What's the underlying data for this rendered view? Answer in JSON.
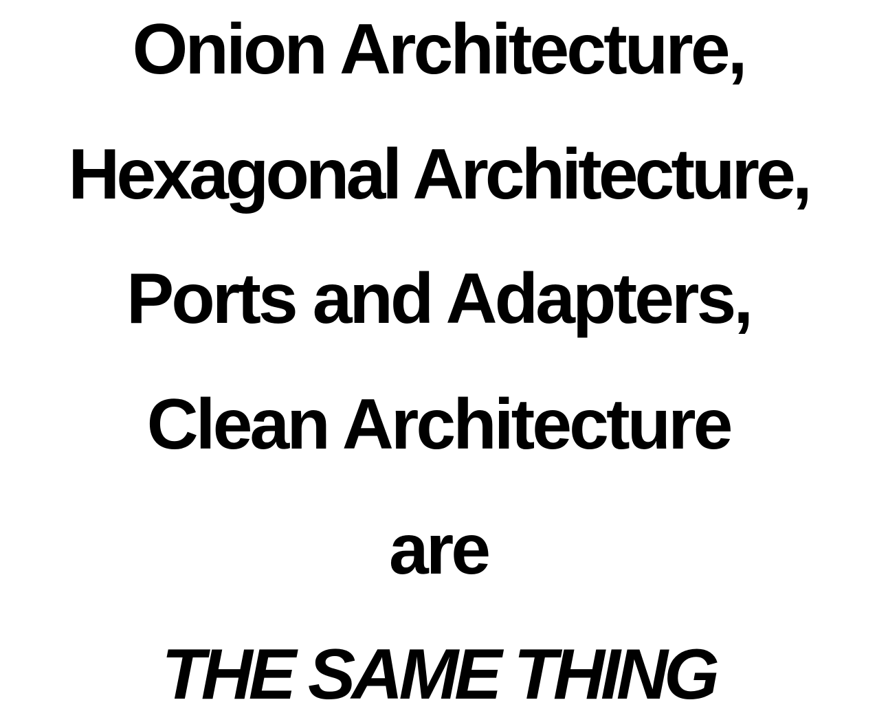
{
  "slide": {
    "lines": [
      "Onion Architecture,",
      "Hexagonal Architecture,",
      "Ports and Adapters,",
      "Clean Architecture",
      "are",
      "THE SAME THING"
    ],
    "text_color": "#000000",
    "background_color": "#ffffff"
  }
}
